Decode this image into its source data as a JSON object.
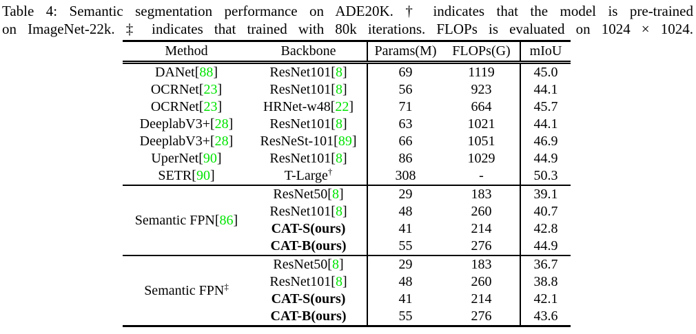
{
  "caption": {
    "line1": "Table 4: Semantic segmentation performance on ADE20K. † indicates that the model is pre-trained",
    "line2": "on ImageNet-22k. ‡ indicates that trained with 80k iterations. FLOPs is evaluated on 1024 × 1024."
  },
  "colors": {
    "citation_link": "#00e400",
    "text": "#000000",
    "background": "#ffffff"
  },
  "table": {
    "headers": [
      "Method",
      "Backbone",
      "Params(M)",
      "FLOPs(G)",
      "mIoU"
    ],
    "sections": [
      {
        "group": null,
        "rows": [
          {
            "method": [
              {
                "text": "DANet["
              },
              {
                "text": "88",
                "style": "cite"
              },
              {
                "text": "]"
              }
            ],
            "backbone": [
              {
                "text": "ResNet101["
              },
              {
                "text": "8",
                "style": "cite"
              },
              {
                "text": "]"
              }
            ],
            "params": "69",
            "flops": "1119",
            "miou": "45.0"
          },
          {
            "method": [
              {
                "text": "OCRNet["
              },
              {
                "text": "23",
                "style": "cite"
              },
              {
                "text": "]"
              }
            ],
            "backbone": [
              {
                "text": "ResNet101["
              },
              {
                "text": "8",
                "style": "cite"
              },
              {
                "text": "]"
              }
            ],
            "params": "56",
            "flops": "923",
            "miou": "44.1"
          },
          {
            "method": [
              {
                "text": "OCRNet["
              },
              {
                "text": "23",
                "style": "cite"
              },
              {
                "text": "]"
              }
            ],
            "backbone": [
              {
                "text": "HRNet-w48["
              },
              {
                "text": "22",
                "style": "cite"
              },
              {
                "text": "]"
              }
            ],
            "params": "71",
            "flops": "664",
            "miou": "45.7"
          },
          {
            "method": [
              {
                "text": "DeeplabV3+["
              },
              {
                "text": "28",
                "style": "cite"
              },
              {
                "text": "]"
              }
            ],
            "backbone": [
              {
                "text": "ResNet101["
              },
              {
                "text": "8",
                "style": "cite"
              },
              {
                "text": "]"
              }
            ],
            "params": "63",
            "flops": "1021",
            "miou": "44.1"
          },
          {
            "method": [
              {
                "text": "DeeplabV3+["
              },
              {
                "text": "28",
                "style": "cite"
              },
              {
                "text": "]"
              }
            ],
            "backbone": [
              {
                "text": "ResNeSt-101["
              },
              {
                "text": "89",
                "style": "cite"
              },
              {
                "text": "]"
              }
            ],
            "params": "66",
            "flops": "1051",
            "miou": "46.9"
          },
          {
            "method": [
              {
                "text": "UperNet["
              },
              {
                "text": "90",
                "style": "cite"
              },
              {
                "text": "]"
              }
            ],
            "backbone": [
              {
                "text": "ResNet101["
              },
              {
                "text": "8",
                "style": "cite"
              },
              {
                "text": "]"
              }
            ],
            "params": "86",
            "flops": "1029",
            "miou": "44.9"
          },
          {
            "method": [
              {
                "text": "SETR["
              },
              {
                "text": "90",
                "style": "cite"
              },
              {
                "text": "]"
              }
            ],
            "backbone": [
              {
                "text": "T-Large"
              },
              {
                "text": "†",
                "style": "sup"
              }
            ],
            "params": "308",
            "flops": "-",
            "miou": "50.3"
          }
        ]
      },
      {
        "group": [
          {
            "text": "Semantic FPN["
          },
          {
            "text": "86",
            "style": "cite"
          },
          {
            "text": "]"
          }
        ],
        "rows": [
          {
            "backbone": [
              {
                "text": "ResNet50["
              },
              {
                "text": "8",
                "style": "cite"
              },
              {
                "text": "]"
              }
            ],
            "params": "29",
            "flops": "183",
            "miou": "39.1"
          },
          {
            "backbone": [
              {
                "text": "ResNet101["
              },
              {
                "text": "8",
                "style": "cite"
              },
              {
                "text": "]"
              }
            ],
            "params": "48",
            "flops": "260",
            "miou": "40.7"
          },
          {
            "backbone": [
              {
                "text": "CAT-S(ours)",
                "style": "bold"
              }
            ],
            "params": "41",
            "flops": "214",
            "miou": "42.8"
          },
          {
            "backbone": [
              {
                "text": "CAT-B(ours)",
                "style": "bold"
              }
            ],
            "params": "55",
            "flops": "276",
            "miou": "44.9"
          }
        ]
      },
      {
        "group": [
          {
            "text": "Semantic FPN"
          },
          {
            "text": "‡",
            "style": "sup"
          }
        ],
        "rows": [
          {
            "backbone": [
              {
                "text": "ResNet50["
              },
              {
                "text": "8",
                "style": "cite"
              },
              {
                "text": "]"
              }
            ],
            "params": "29",
            "flops": "183",
            "miou": "36.7"
          },
          {
            "backbone": [
              {
                "text": "ResNet101["
              },
              {
                "text": "8",
                "style": "cite"
              },
              {
                "text": "]"
              }
            ],
            "params": "48",
            "flops": "260",
            "miou": "38.8"
          },
          {
            "backbone": [
              {
                "text": "CAT-S(ours)",
                "style": "bold"
              }
            ],
            "params": "41",
            "flops": "214",
            "miou": "42.1"
          },
          {
            "backbone": [
              {
                "text": "CAT-B(ours)",
                "style": "bold"
              }
            ],
            "params": "55",
            "flops": "276",
            "miou": "43.6"
          }
        ]
      }
    ]
  }
}
